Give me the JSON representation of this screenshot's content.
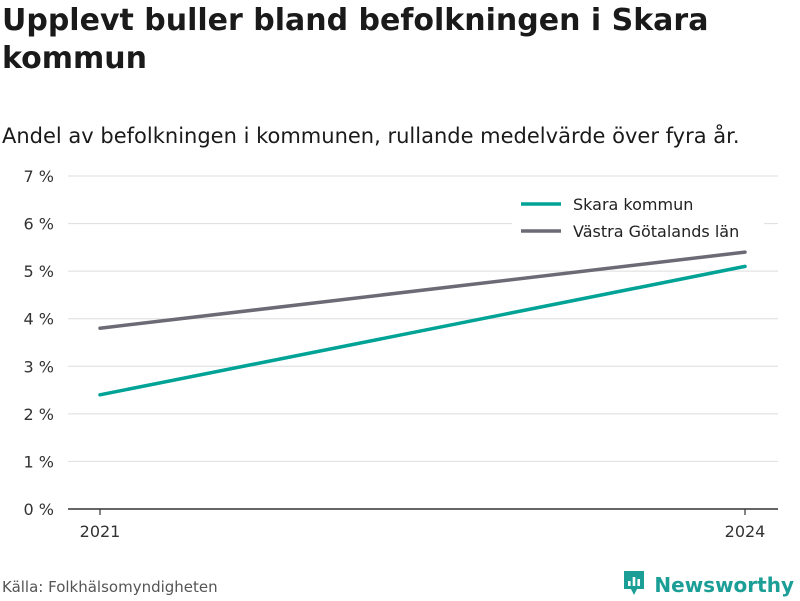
{
  "chart_data": {
    "type": "line",
    "title": "Upplevt buller bland befolkningen i Skara kommun",
    "subtitle": "Andel av befolkningen i kommunen, rullande medelvärde över fyra år.",
    "x": [
      "2021",
      "2024"
    ],
    "series": [
      {
        "name": "Skara kommun",
        "values": [
          2.4,
          5.1
        ],
        "color": "#00a396"
      },
      {
        "name": "Västra Götalands län",
        "values": [
          3.8,
          5.4
        ],
        "color": "#6c6b75"
      }
    ],
    "ylim": [
      0,
      7
    ],
    "yticks": [
      "0 %",
      "1 %",
      "2 %",
      "3 %",
      "4 %",
      "5 %",
      "6 %",
      "7 %"
    ],
    "grid": true,
    "legend": "top-right"
  },
  "source": "Källa: Folkhälsomyndigheten",
  "brand": {
    "name": "Newsworthy",
    "logo_icon": "newsworthy-logo-icon",
    "color": "#1a9e96"
  }
}
